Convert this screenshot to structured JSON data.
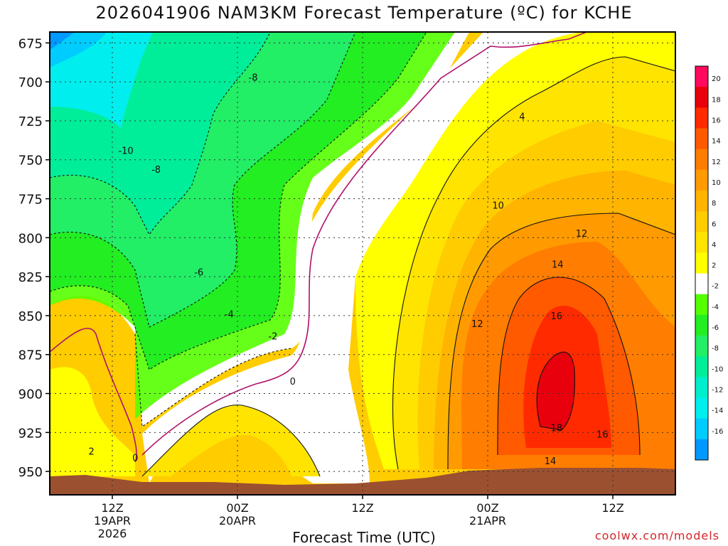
{
  "chart_data": {
    "type": "heatmap",
    "title": "2026041906 NAM3KM Forecast Temperature (ºC) for KCHE",
    "xlabel": "Forecast Time (UTC)",
    "credit": "coolwx.com/models",
    "y_ticks": [
      "675",
      "700",
      "725",
      "750",
      "775",
      "800",
      "825",
      "850",
      "875",
      "900",
      "925",
      "950"
    ],
    "y_values": [
      675,
      700,
      725,
      750,
      775,
      800,
      825,
      850,
      875,
      900,
      925,
      950
    ],
    "ylim": [
      668,
      965
    ],
    "x_ticks": [
      {
        "hour": 6,
        "lines": [
          "12Z",
          "19APR",
          "2026"
        ]
      },
      {
        "hour": 18,
        "lines": [
          "00Z",
          "20APR"
        ]
      },
      {
        "hour": 30,
        "lines": [
          "12Z"
        ]
      },
      {
        "hour": 42,
        "lines": [
          "00Z",
          "21APR"
        ]
      },
      {
        "hour": 54,
        "lines": [
          "12Z"
        ]
      }
    ],
    "xlim": [
      0,
      60
    ],
    "colorbar": {
      "labels": [
        "20",
        "18",
        "16",
        "14",
        "12",
        "10",
        "8",
        "6",
        "4",
        "2",
        "-2",
        "-4",
        "-6",
        "-8",
        "-10",
        "-12",
        "-14",
        "-16"
      ],
      "colors": [
        "#ff0a5e",
        "#e8000c",
        "#ff2a00",
        "#ff5a00",
        "#ff7d00",
        "#ff9a00",
        "#ffb400",
        "#ffcc00",
        "#ffe400",
        "#ffff00",
        "#ffffff",
        "#55ff00",
        "#22ee22",
        "#22ee66",
        "#00ee99",
        "#00eecc",
        "#00eeee",
        "#00ccff",
        "#0099ff"
      ]
    },
    "contour_labels": [
      {
        "text": "-8",
        "hour": 19.5,
        "p": 697
      },
      {
        "text": "-10",
        "hour": 7.3,
        "p": 744
      },
      {
        "text": "-8",
        "hour": 10.2,
        "p": 756
      },
      {
        "text": "-6",
        "hour": 14.3,
        "p": 822
      },
      {
        "text": "-4",
        "hour": 17.2,
        "p": 849
      },
      {
        "text": "-2",
        "hour": 21.4,
        "p": 863
      },
      {
        "text": "0",
        "hour": 23.3,
        "p": 892
      },
      {
        "text": "0",
        "hour": 8.2,
        "p": 941
      },
      {
        "text": "2",
        "hour": 4.0,
        "p": 937
      },
      {
        "text": "4",
        "hour": 45.3,
        "p": 722
      },
      {
        "text": "10",
        "hour": 43.0,
        "p": 779
      },
      {
        "text": "12",
        "hour": 51.0,
        "p": 797
      },
      {
        "text": "14",
        "hour": 48.7,
        "p": 817
      },
      {
        "text": "16",
        "hour": 48.6,
        "p": 850
      },
      {
        "text": "12",
        "hour": 41.0,
        "p": 855
      },
      {
        "text": "18",
        "hour": 48.6,
        "p": 922
      },
      {
        "text": "16",
        "hour": 53.0,
        "p": 926
      },
      {
        "text": "14",
        "hour": 48.0,
        "p": 943
      }
    ],
    "terrain_color": "#9b5030",
    "grid": true
  }
}
